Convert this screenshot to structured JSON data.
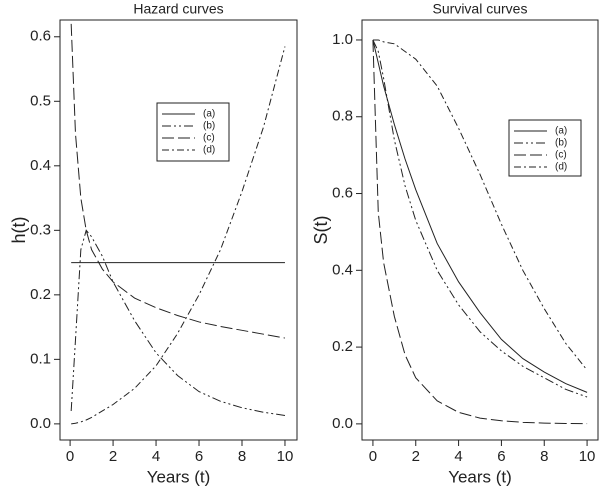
{
  "chart_data": [
    {
      "type": "line",
      "title": "Hazard curves",
      "x_label": "Years (t)",
      "y_label": "h(t)",
      "x": [
        0.05,
        0.25,
        0.5,
        0.75,
        1,
        1.5,
        2,
        3,
        4,
        5,
        6,
        7,
        8,
        9,
        10
      ],
      "series": [
        {
          "name": "(a)",
          "color": "#222222",
          "values": [
            0.25,
            0.25,
            0.25,
            0.25,
            0.25,
            0.25,
            0.25,
            0.25,
            0.25,
            0.25,
            0.25,
            0.25,
            0.25,
            0.25,
            0.25
          ]
        },
        {
          "name": "(b)",
          "color": "#222222",
          "values": [
            0.02,
            0.13,
            0.27,
            0.3,
            0.29,
            0.26,
            0.22,
            0.16,
            0.11,
            0.075,
            0.05,
            0.035,
            0.025,
            0.018,
            0.013
          ]
        },
        {
          "name": "(c)",
          "color": "#222222",
          "values": [
            0.62,
            0.45,
            0.35,
            0.3,
            0.27,
            0.24,
            0.22,
            0.195,
            0.18,
            0.168,
            0.158,
            0.151,
            0.145,
            0.139,
            0.133
          ]
        },
        {
          "name": "(d)",
          "color": "#222222",
          "values": [
            0,
            0.001,
            0.003,
            0.006,
            0.01,
            0.02,
            0.03,
            0.055,
            0.09,
            0.14,
            0.2,
            0.27,
            0.36,
            0.46,
            0.585
          ]
        }
      ],
      "xlim": [
        -0.47,
        10.56
      ],
      "ylim": [
        -0.025,
        0.626
      ],
      "xticks": [
        0,
        2,
        4,
        6,
        8,
        10
      ],
      "yticks": [
        {
          "value": 0,
          "label": "0.0"
        },
        0.1,
        0.2,
        0.3,
        0.4,
        0.5,
        0.6
      ]
    },
    {
      "type": "line",
      "title": "Survival curves",
      "x_label": "Years (t)",
      "y_label": "S(t)",
      "x": [
        0,
        0.25,
        0.5,
        1,
        1.5,
        2,
        3,
        4,
        5,
        6,
        7,
        8,
        9,
        10
      ],
      "series": [
        {
          "name": "(a)",
          "color": "#222222",
          "values": [
            1,
            0.94,
            0.88,
            0.78,
            0.69,
            0.61,
            0.47,
            0.37,
            0.29,
            0.22,
            0.17,
            0.135,
            0.105,
            0.082
          ]
        },
        {
          "name": "(b)",
          "color": "#222222",
          "values": [
            1,
            0.97,
            0.9,
            0.74,
            0.62,
            0.53,
            0.4,
            0.31,
            0.24,
            0.19,
            0.15,
            0.12,
            0.09,
            0.07
          ]
        },
        {
          "name": "(c)",
          "color": "#222222",
          "values": [
            1,
            0.55,
            0.42,
            0.28,
            0.18,
            0.12,
            0.06,
            0.03,
            0.015,
            0.008,
            0.004,
            0.002,
            0.001,
            0.0005
          ]
        },
        {
          "name": "(d)",
          "color": "#222222",
          "values": [
            1,
            1,
            0.995,
            0.99,
            0.97,
            0.95,
            0.88,
            0.77,
            0.65,
            0.52,
            0.4,
            0.3,
            0.21,
            0.14
          ]
        }
      ],
      "xlim": [
        -0.51,
        10.51
      ],
      "ylim": [
        -0.042,
        1.052
      ],
      "xticks": [
        0,
        2,
        4,
        6,
        8,
        10
      ],
      "yticks": [
        {
          "value": 0,
          "label": "0.0"
        },
        0.2,
        0.4,
        0.6,
        0.8,
        {
          "value": 1,
          "label": "1.0"
        }
      ]
    }
  ]
}
